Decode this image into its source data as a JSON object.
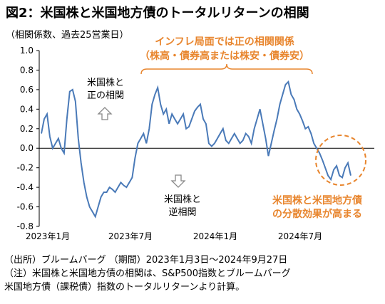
{
  "title": "図2：米国株と米国地方債のトータルリターンの相関",
  "subtitle": "（相関係数、過去25営業日）",
  "notes": {
    "positive_label_1": "インフレ局面では正の相関関係",
    "positive_label_2": "（株高・債券高または株安・債券安）",
    "pos_corr_1": "米国株と",
    "pos_corr_2": "正の相関",
    "neg_corr_1": "米国株と",
    "neg_corr_2": "逆相関",
    "diversification_1": "米国株と米国地方債",
    "diversification_2": "の分散効果が高まる"
  },
  "footnotes": {
    "source": "（出所）ブルームバーグ （期間）2023年1月3日～2024年9月27日",
    "note_1": "（注）米国株と米国地方債の相関は、S&P500指数とブルームバーグ",
    "note_2": "米国地方債（課税債）指数のトータルリターンより計算。"
  },
  "colors": {
    "line": "#4a7ab8",
    "accent": "#e8852d",
    "arrow": "#888888"
  },
  "chart_data": {
    "type": "line",
    "ylim": [
      -0.8,
      1.0
    ],
    "yticks": [
      "1.0",
      "0.8",
      "0.6",
      "0.4",
      "0.2",
      "0.0",
      "-0.2",
      "-0.4",
      "-0.6",
      "-0.8"
    ],
    "xticks": [
      "2023年1月",
      "2023年7月",
      "2024年1月",
      "2024年7月"
    ],
    "xlabel": "",
    "ylabel": "",
    "grid": false,
    "series": [
      {
        "values": [
          0.15,
          0.3,
          0.35,
          0.12,
          0.0,
          0.05,
          0.1,
          0.0,
          -0.05,
          0.3,
          0.58,
          0.6,
          0.48,
          0.1,
          -0.15,
          -0.35,
          -0.5,
          -0.6,
          -0.65,
          -0.7,
          -0.6,
          -0.5,
          -0.45,
          -0.45,
          -0.4,
          -0.42,
          -0.45,
          -0.4,
          -0.35,
          -0.38,
          -0.4,
          -0.35,
          -0.3,
          -0.1,
          0.05,
          0.1,
          0.15,
          0.05,
          0.2,
          0.45,
          0.55,
          0.62,
          0.45,
          0.35,
          0.4,
          0.25,
          0.35,
          0.3,
          0.25,
          0.3,
          0.35,
          0.2,
          0.22,
          0.3,
          0.38,
          0.42,
          0.45,
          0.3,
          0.25,
          0.05,
          0.02,
          0.05,
          0.1,
          0.15,
          0.2,
          0.08,
          0.05,
          0.1,
          0.15,
          0.1,
          0.05,
          0.08,
          0.15,
          0.12,
          0.05,
          0.2,
          0.3,
          0.4,
          0.25,
          0.1,
          -0.08,
          0.05,
          0.18,
          0.3,
          0.45,
          0.55,
          0.65,
          0.68,
          0.55,
          0.5,
          0.4,
          0.35,
          0.28,
          0.2,
          0.22,
          0.15,
          0.05,
          0.0,
          -0.05,
          -0.12,
          -0.2,
          -0.28,
          -0.32,
          -0.22,
          -0.18,
          -0.28,
          -0.3,
          -0.2,
          -0.15,
          -0.28
        ],
        "color": "#4a7ab8"
      }
    ]
  }
}
